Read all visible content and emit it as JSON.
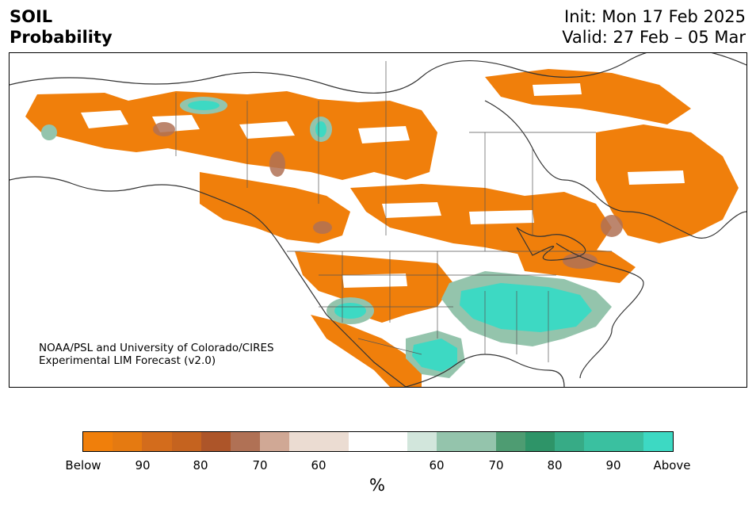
{
  "header": {
    "variable": "SOIL",
    "kind": "Probability",
    "init": "Init: Mon 17 Feb 2025",
    "valid": "Valid: 27 Feb – 05 Mar"
  },
  "credit": {
    "line1": "NOAA/PSL and University of Colorado/CIRES",
    "line2": "Experimental LIM Forecast (v2.0)"
  },
  "colorbar": {
    "colors": [
      "#f07f0b",
      "#e57a11",
      "#d36c1c",
      "#c5631f",
      "#ad5529",
      "#b07155",
      "#d0a895",
      "#ebdcd2",
      "#ebdcd2",
      "#ffffff",
      "#ffffff",
      "#d2e6dc",
      "#94c4ac",
      "#94c4ac",
      "#4e9c72",
      "#2e9468",
      "#37ab86",
      "#3ac0a0",
      "#3ac0a0",
      "#3dd9c3"
    ],
    "tick_labels": [
      "Below",
      "90",
      "80",
      "70",
      "60",
      "60",
      "70",
      "80",
      "90",
      "Above"
    ],
    "unit": "%"
  },
  "legend_colors": {
    "below_strong": "#f07f0b",
    "below_weak": "#b07155",
    "above_weak": "#94c4ac",
    "above_strong": "#3dd9c3"
  }
}
